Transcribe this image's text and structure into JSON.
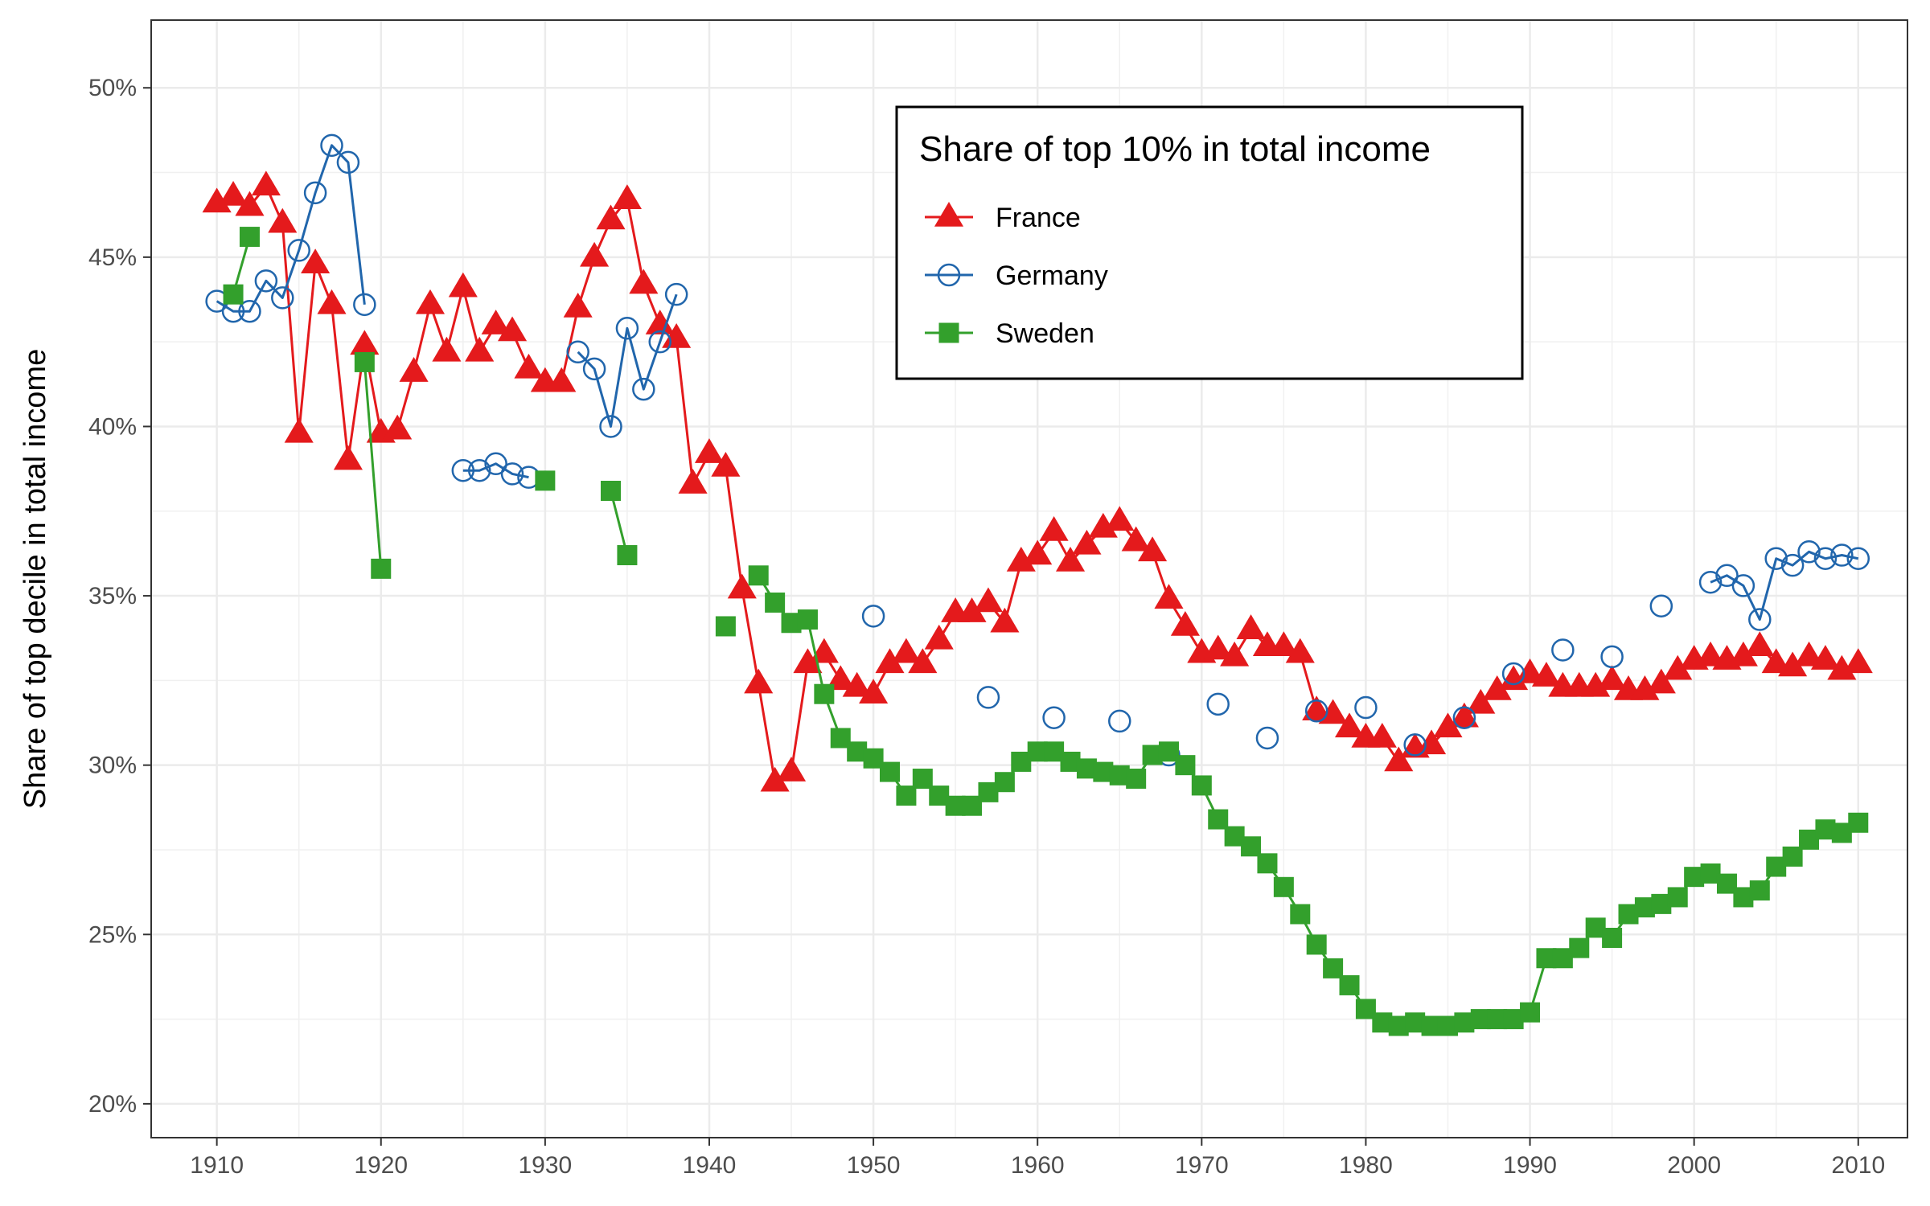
{
  "chart_data": {
    "type": "line",
    "ylabel": "Share of top decile in total income",
    "xlim": [
      1906,
      2013
    ],
    "ylim": [
      0.19,
      0.52
    ],
    "x_ticks": [
      1910,
      1920,
      1930,
      1940,
      1950,
      1960,
      1970,
      1980,
      1990,
      2000,
      2010
    ],
    "y_ticks": [
      0.2,
      0.25,
      0.3,
      0.35,
      0.4,
      0.45,
      0.5
    ],
    "y_tick_labels": [
      "20%",
      "25%",
      "30%",
      "35%",
      "40%",
      "45%",
      "50%"
    ],
    "grid": true,
    "legend": {
      "title": "Share of top 10% in total income",
      "position": "top-center"
    },
    "series": [
      {
        "name": "France",
        "color": "#e41a1c",
        "marker": "triangle-filled",
        "points": [
          [
            1910,
            0.466
          ],
          [
            1911,
            0.468
          ],
          [
            1912,
            0.465
          ],
          [
            1913,
            0.471
          ],
          [
            1914,
            0.46
          ],
          [
            1915,
            0.398
          ],
          [
            1916,
            0.448
          ],
          [
            1917,
            0.436
          ],
          [
            1918,
            0.39
          ],
          [
            1919,
            0.424
          ],
          [
            1920,
            0.398
          ],
          [
            1921,
            0.399
          ],
          [
            1922,
            0.416
          ],
          [
            1923,
            0.436
          ],
          [
            1924,
            0.422
          ],
          [
            1925,
            0.441
          ],
          [
            1926,
            0.422
          ],
          [
            1927,
            0.43
          ],
          [
            1928,
            0.428
          ],
          [
            1929,
            0.417
          ],
          [
            1930,
            0.413
          ],
          [
            1931,
            0.413
          ],
          [
            1932,
            0.435
          ],
          [
            1933,
            0.45
          ],
          [
            1934,
            0.461
          ],
          [
            1935,
            0.467
          ],
          [
            1936,
            0.442
          ],
          [
            1937,
            0.43
          ],
          [
            1938,
            0.426
          ],
          [
            1939,
            0.383
          ],
          [
            1940,
            0.392
          ],
          [
            1941,
            0.388
          ],
          [
            1942,
            0.352
          ],
          [
            1943,
            0.324
          ],
          [
            1944,
            0.295
          ],
          [
            1945,
            0.298
          ],
          [
            1946,
            0.33
          ],
          [
            1947,
            0.333
          ],
          [
            1948,
            0.325
          ],
          [
            1949,
            0.323
          ],
          [
            1950,
            0.321
          ],
          [
            1951,
            0.33
          ],
          [
            1952,
            0.333
          ],
          [
            1953,
            0.33
          ],
          [
            1954,
            0.337
          ],
          [
            1955,
            0.345
          ],
          [
            1956,
            0.345
          ],
          [
            1957,
            0.348
          ],
          [
            1958,
            0.342
          ],
          [
            1959,
            0.36
          ],
          [
            1960,
            0.362
          ],
          [
            1961,
            0.369
          ],
          [
            1962,
            0.36
          ],
          [
            1963,
            0.365
          ],
          [
            1964,
            0.37
          ],
          [
            1965,
            0.372
          ],
          [
            1966,
            0.366
          ],
          [
            1967,
            0.363
          ],
          [
            1968,
            0.349
          ],
          [
            1969,
            0.341
          ],
          [
            1970,
            0.333
          ],
          [
            1971,
            0.334
          ],
          [
            1972,
            0.332
          ],
          [
            1973,
            0.34
          ],
          [
            1974,
            0.335
          ],
          [
            1975,
            0.335
          ],
          [
            1976,
            0.333
          ],
          [
            1977,
            0.316
          ],
          [
            1978,
            0.315
          ],
          [
            1979,
            0.311
          ],
          [
            1980,
            0.308
          ],
          [
            1981,
            0.308
          ],
          [
            1982,
            0.301
          ],
          [
            1983,
            0.305
          ],
          [
            1984,
            0.306
          ],
          [
            1985,
            0.311
          ],
          [
            1986,
            0.314
          ],
          [
            1987,
            0.318
          ],
          [
            1988,
            0.322
          ],
          [
            1989,
            0.325
          ],
          [
            1990,
            0.327
          ],
          [
            1991,
            0.326
          ],
          [
            1992,
            0.323
          ],
          [
            1993,
            0.323
          ],
          [
            1994,
            0.323
          ],
          [
            1995,
            0.325
          ],
          [
            1996,
            0.322
          ],
          [
            1997,
            0.322
          ],
          [
            1998,
            0.324
          ],
          [
            1999,
            0.328
          ],
          [
            2000,
            0.331
          ],
          [
            2001,
            0.332
          ],
          [
            2002,
            0.331
          ],
          [
            2003,
            0.332
          ],
          [
            2004,
            0.335
          ],
          [
            2005,
            0.33
          ],
          [
            2006,
            0.329
          ],
          [
            2007,
            0.332
          ],
          [
            2008,
            0.331
          ],
          [
            2009,
            0.328
          ],
          [
            2010,
            0.33
          ]
        ]
      },
      {
        "name": "Germany",
        "color": "#2166ac",
        "marker": "circle-open",
        "points": [
          [
            1910,
            0.437
          ],
          [
            1911,
            0.434
          ],
          [
            1912,
            0.434
          ],
          [
            1913,
            0.443
          ],
          [
            1914,
            0.438
          ],
          [
            1915,
            0.452
          ],
          [
            1916,
            0.469
          ],
          [
            1917,
            0.483
          ],
          [
            1918,
            0.478
          ],
          [
            1919,
            0.436
          ],
          null,
          [
            1925,
            0.387
          ],
          [
            1926,
            0.387
          ],
          [
            1927,
            0.389
          ],
          [
            1928,
            0.386
          ],
          [
            1929,
            0.385
          ],
          null,
          [
            1932,
            0.422
          ],
          [
            1933,
            0.417
          ],
          [
            1934,
            0.4
          ],
          [
            1935,
            0.429
          ],
          [
            1936,
            0.411
          ],
          [
            1937,
            0.425
          ],
          [
            1938,
            0.439
          ],
          null,
          [
            1950,
            0.344
          ],
          null,
          [
            1957,
            0.32
          ],
          null,
          [
            1961,
            0.314
          ],
          null,
          [
            1965,
            0.313
          ],
          null,
          [
            1968,
            0.303
          ],
          null,
          [
            1971,
            0.318
          ],
          null,
          [
            1974,
            0.308
          ],
          null,
          [
            1977,
            0.316
          ],
          null,
          [
            1980,
            0.317
          ],
          null,
          [
            1983,
            0.306
          ],
          null,
          [
            1986,
            0.314
          ],
          null,
          [
            1989,
            0.327
          ],
          null,
          [
            1992,
            0.334
          ],
          null,
          [
            1995,
            0.332
          ],
          null,
          [
            1998,
            0.347
          ],
          null,
          [
            2001,
            0.354
          ],
          [
            2002,
            0.356
          ],
          [
            2003,
            0.353
          ],
          [
            2004,
            0.343
          ],
          [
            2005,
            0.361
          ],
          [
            2006,
            0.359
          ],
          [
            2007,
            0.363
          ],
          [
            2008,
            0.361
          ],
          [
            2009,
            0.362
          ],
          [
            2010,
            0.361
          ]
        ]
      },
      {
        "name": "Sweden",
        "color": "#33a02c",
        "marker": "square-filled",
        "points": [
          [
            1911,
            0.439
          ],
          [
            1912,
            0.456
          ],
          null,
          [
            1919,
            0.419
          ],
          [
            1920,
            0.358
          ],
          null,
          [
            1930,
            0.384
          ],
          null,
          [
            1934,
            0.381
          ],
          [
            1935,
            0.362
          ],
          null,
          [
            1941,
            0.341
          ],
          null,
          [
            1943,
            0.356
          ],
          [
            1944,
            0.348
          ],
          [
            1945,
            0.342
          ],
          [
            1946,
            0.343
          ],
          [
            1947,
            0.321
          ],
          [
            1948,
            0.308
          ],
          [
            1949,
            0.304
          ],
          [
            1950,
            0.302
          ],
          [
            1951,
            0.298
          ],
          [
            1952,
            0.291
          ],
          [
            1953,
            0.296
          ],
          [
            1954,
            0.291
          ],
          [
            1955,
            0.288
          ],
          [
            1956,
            0.288
          ],
          [
            1957,
            0.292
          ],
          [
            1958,
            0.295
          ],
          [
            1959,
            0.301
          ],
          [
            1960,
            0.304
          ],
          [
            1961,
            0.304
          ],
          [
            1962,
            0.301
          ],
          [
            1963,
            0.299
          ],
          [
            1964,
            0.298
          ],
          [
            1965,
            0.297
          ],
          [
            1966,
            0.296
          ],
          [
            1967,
            0.303
          ],
          [
            1968,
            0.304
          ],
          [
            1969,
            0.3
          ],
          [
            1970,
            0.294
          ],
          [
            1971,
            0.284
          ],
          [
            1972,
            0.279
          ],
          [
            1973,
            0.276
          ],
          [
            1974,
            0.271
          ],
          [
            1975,
            0.264
          ],
          [
            1976,
            0.256
          ],
          [
            1977,
            0.247
          ],
          [
            1978,
            0.24
          ],
          [
            1979,
            0.235
          ],
          [
            1980,
            0.228
          ],
          [
            1981,
            0.224
          ],
          [
            1982,
            0.223
          ],
          [
            1983,
            0.224
          ],
          [
            1984,
            0.223
          ],
          [
            1985,
            0.223
          ],
          [
            1986,
            0.224
          ],
          [
            1987,
            0.225
          ],
          [
            1988,
            0.225
          ],
          [
            1989,
            0.225
          ],
          [
            1990,
            0.227
          ],
          [
            1991,
            0.243
          ],
          [
            1992,
            0.243
          ],
          [
            1993,
            0.246
          ],
          [
            1994,
            0.252
          ],
          [
            1995,
            0.249
          ],
          [
            1996,
            0.256
          ],
          [
            1997,
            0.258
          ],
          [
            1998,
            0.259
          ],
          [
            1999,
            0.261
          ],
          [
            2000,
            0.267
          ],
          [
            2001,
            0.268
          ],
          [
            2002,
            0.265
          ],
          [
            2003,
            0.261
          ],
          [
            2004,
            0.263
          ],
          [
            2005,
            0.27
          ],
          [
            2006,
            0.273
          ],
          [
            2007,
            0.278
          ],
          [
            2008,
            0.281
          ],
          [
            2009,
            0.28
          ],
          [
            2010,
            0.283
          ]
        ]
      }
    ]
  }
}
